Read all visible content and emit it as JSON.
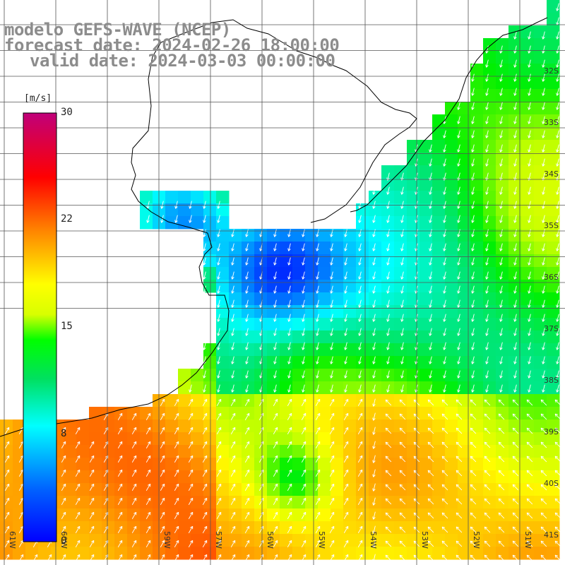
{
  "title": {
    "line1": "modelo GEFS-WAVE (NCEP)",
    "line2": "forecast date: 2024-02-26 18:00:00",
    "line3": "valid date: 2024-03-03 00:00:00"
  },
  "colorbar": {
    "unit": "[m/s]",
    "min": 0,
    "max": 30,
    "ticks": [
      "30",
      "22",
      "15",
      "8",
      "0"
    ],
    "tick_values": [
      30,
      22,
      15,
      8,
      0
    ]
  },
  "axes": {
    "lon_labels": [
      "61W",
      "60W",
      "59W",
      "57W",
      "56W",
      "55W",
      "54W",
      "53W",
      "52W",
      "51W"
    ],
    "lat_labels": [
      "32S",
      "33S",
      "34S",
      "35S",
      "36S",
      "37S",
      "38S",
      "39S",
      "40S",
      "41S"
    ]
  },
  "map_colors": {
    "land": "#ffffff",
    "coast": "#000000",
    "grid": "#555555",
    "arrow": "#ffffff"
  }
}
